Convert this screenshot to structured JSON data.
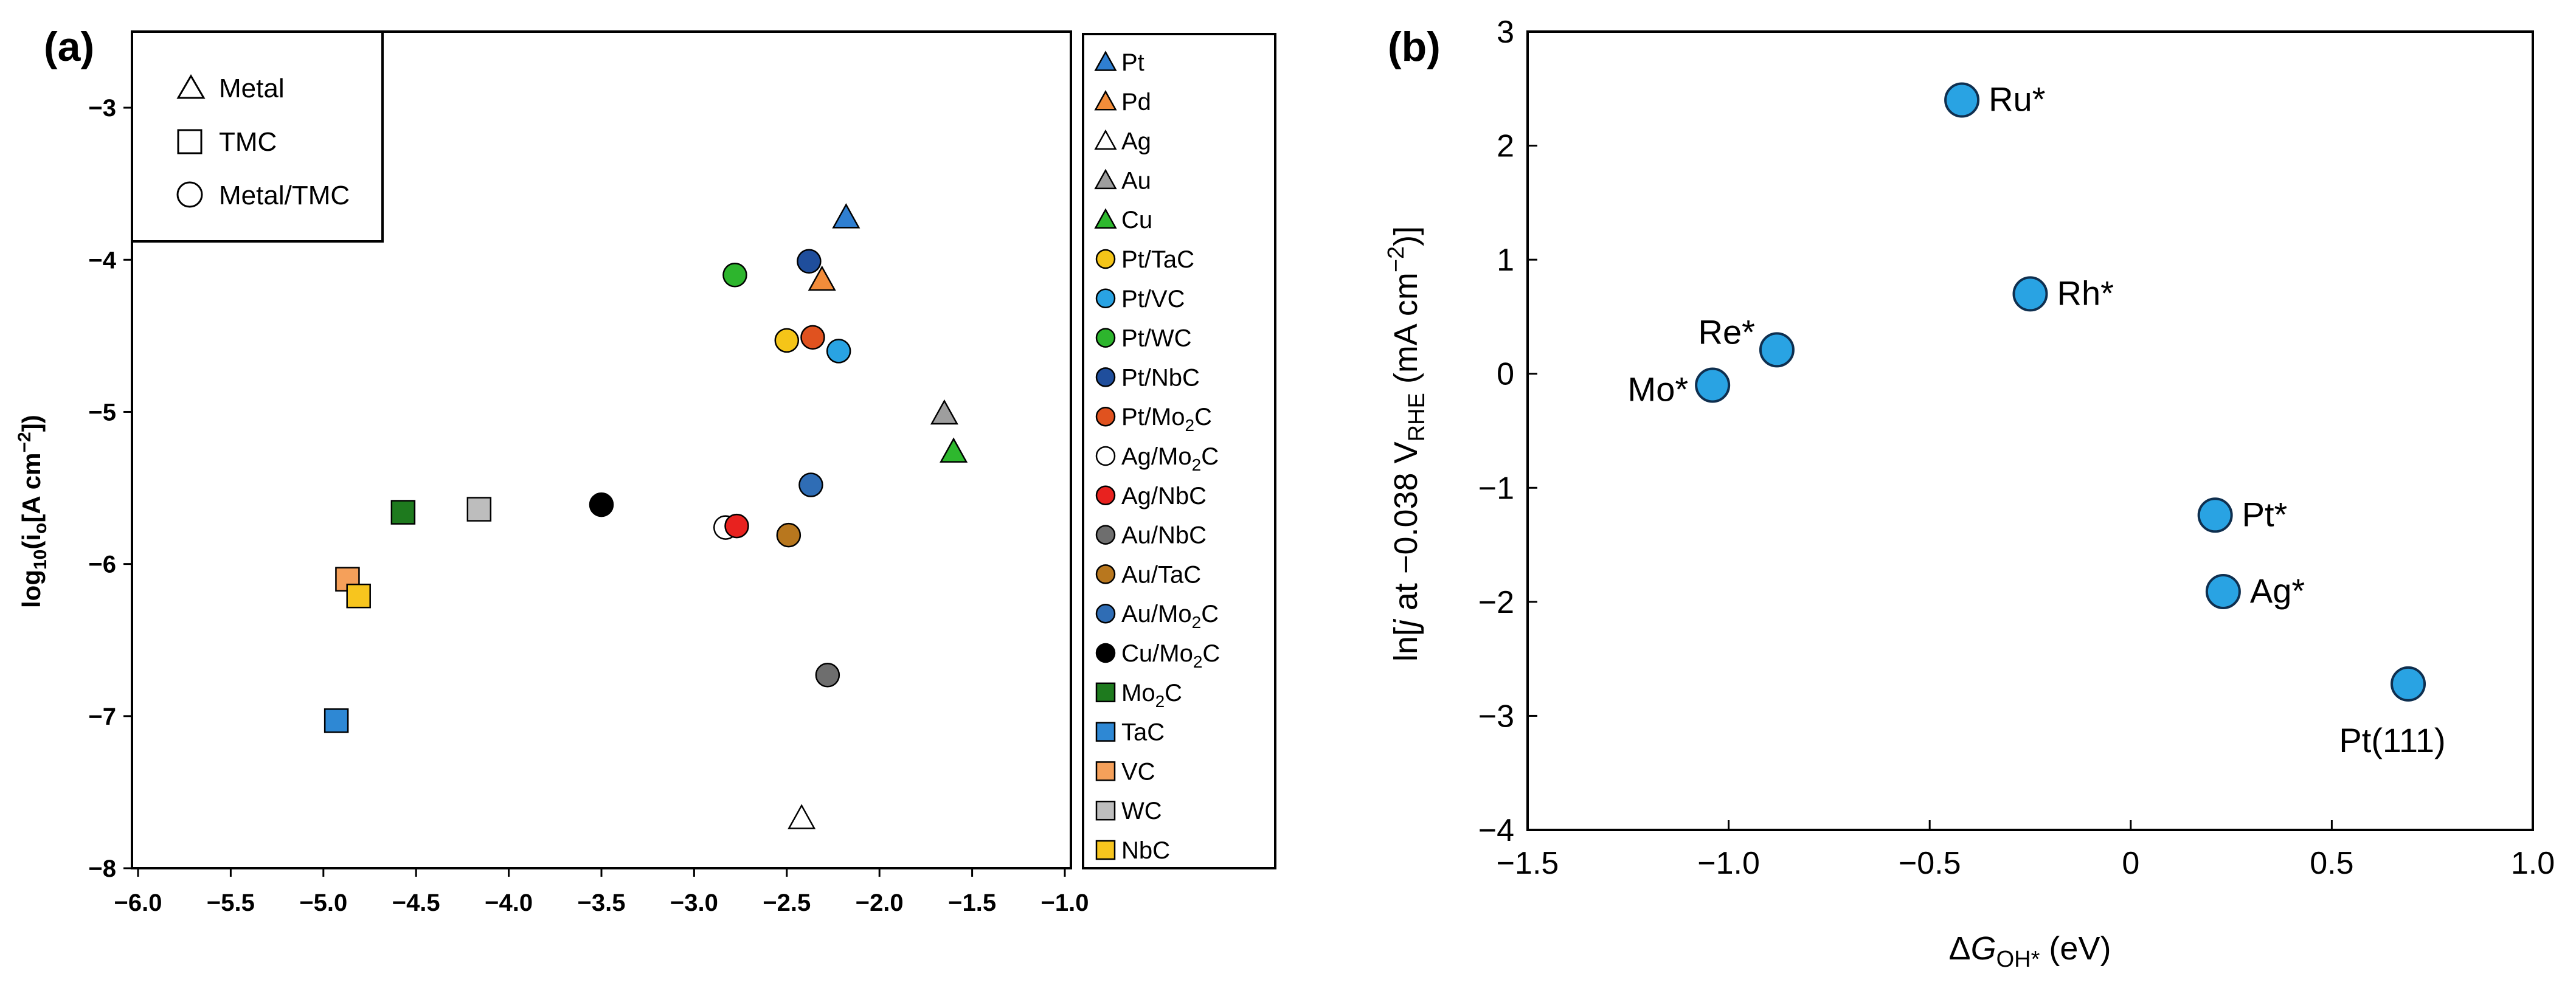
{
  "chart_data": [
    {
      "panel": "(a)",
      "type": "scatter",
      "title": "",
      "xlabel": "",
      "ylabel_main": "log",
      "ylabel_sub": "10",
      "ylabel_paren1": "(i",
      "ylabel_sub2": "o",
      "ylabel_rest": "[A cm",
      "ylabel_sup": "−2",
      "ylabel_end": "])",
      "xlim": [
        -6.0,
        -1.0
      ],
      "ylim": [
        -8,
        -2.5
      ],
      "xticks": [
        "−6.0",
        "−5.5",
        "−5.0",
        "−4.5",
        "−4.0",
        "−3.5",
        "−3.0",
        "−2.5",
        "−2.0",
        "−1.5",
        "−1.0"
      ],
      "yticks": [
        "−3",
        "−4",
        "−5",
        "−6",
        "−7",
        "−8"
      ],
      "shape_legend": [
        {
          "label": "Metal",
          "marker": "triangle"
        },
        {
          "label": "TMC",
          "marker": "square"
        },
        {
          "label": "Metal/TMC",
          "marker": "circle"
        }
      ],
      "series": [
        {
          "name": "Pt",
          "label_main": "Pt",
          "label_sub": "",
          "label_tail": "",
          "marker": "triangle",
          "color": "#2f7fd1",
          "points": [
            [
              -2.18,
              -3.72
            ]
          ]
        },
        {
          "name": "Pd",
          "label_main": "Pd",
          "label_sub": "",
          "label_tail": "",
          "marker": "triangle",
          "color": "#f28c3a",
          "points": [
            [
              -2.31,
              -4.13
            ]
          ]
        },
        {
          "name": "Ag",
          "label_main": "Ag",
          "label_sub": "",
          "label_tail": "",
          "marker": "triangle",
          "color": "#ffffff",
          "points": [
            [
              -2.42,
              -7.67
            ]
          ]
        },
        {
          "name": "Au",
          "label_main": "Au",
          "label_sub": "",
          "label_tail": "",
          "marker": "triangle",
          "color": "#9e9e9e",
          "points": [
            [
              -1.65,
              -5.01
            ]
          ]
        },
        {
          "name": "Cu",
          "label_main": "Cu",
          "label_sub": "",
          "label_tail": "",
          "marker": "triangle",
          "color": "#2eb82e",
          "points": [
            [
              -1.6,
              -5.26
            ]
          ]
        },
        {
          "name": "Pt/TaC",
          "label_main": "Pt/TaC",
          "label_sub": "",
          "label_tail": "",
          "marker": "circle",
          "color": "#f5c518",
          "points": [
            [
              -2.5,
              -4.53
            ]
          ]
        },
        {
          "name": "Pt/VC",
          "label_main": "Pt/VC",
          "label_sub": "",
          "label_tail": "",
          "marker": "circle",
          "color": "#29a3e3",
          "points": [
            [
              -2.22,
              -4.6
            ]
          ]
        },
        {
          "name": "Pt/WC",
          "label_main": "Pt/WC",
          "label_sub": "",
          "label_tail": "",
          "marker": "circle",
          "color": "#2db52d",
          "points": [
            [
              -2.78,
              -4.1
            ]
          ]
        },
        {
          "name": "Pt/NbC",
          "label_main": "Pt/NbC",
          "label_sub": "",
          "label_tail": "",
          "marker": "circle",
          "color": "#1f4e9c",
          "points": [
            [
              -2.38,
              -4.01
            ]
          ]
        },
        {
          "name": "Pt/Mo2C",
          "label_main": "Pt/Mo",
          "label_sub": "2",
          "label_tail": "C",
          "marker": "circle",
          "color": "#e0521f",
          "points": [
            [
              -2.36,
              -4.51
            ]
          ]
        },
        {
          "name": "Ag/Mo2C",
          "label_main": "Ag/Mo",
          "label_sub": "2",
          "label_tail": "C",
          "marker": "circle",
          "color": "#ffffff",
          "points": [
            [
              -2.83,
              -5.76
            ]
          ]
        },
        {
          "name": "Ag/NbC",
          "label_main": "Ag/NbC",
          "label_sub": "",
          "label_tail": "",
          "marker": "circle",
          "color": "#e8221f",
          "points": [
            [
              -2.77,
              -5.75
            ]
          ]
        },
        {
          "name": "Au/NbC",
          "label_main": "Au/NbC",
          "label_sub": "",
          "label_tail": "",
          "marker": "circle",
          "color": "#6e6e6e",
          "points": [
            [
              -2.28,
              -6.73
            ]
          ]
        },
        {
          "name": "Au/TaC",
          "label_main": "Au/TaC",
          "label_sub": "",
          "label_tail": "",
          "marker": "circle",
          "color": "#b8771e",
          "points": [
            [
              -2.49,
              -5.81
            ]
          ]
        },
        {
          "name": "Au/Mo2C",
          "label_main": "Au/Mo",
          "label_sub": "2",
          "label_tail": "C",
          "marker": "circle",
          "color": "#2f6db5",
          "points": [
            [
              -2.37,
              -5.48
            ]
          ]
        },
        {
          "name": "Cu/Mo2C",
          "label_main": "Cu/Mo",
          "label_sub": "2",
          "label_tail": "C",
          "marker": "circle",
          "color": "#000000",
          "points": [
            [
              -3.5,
              -5.61
            ]
          ]
        },
        {
          "name": "Mo2C",
          "label_main": "Mo",
          "label_sub": "2",
          "label_tail": "C",
          "marker": "square",
          "color": "#1e7a1e",
          "points": [
            [
              -4.57,
              -5.66
            ]
          ]
        },
        {
          "name": "TaC",
          "label_main": "TaC",
          "label_sub": "",
          "label_tail": "",
          "marker": "square",
          "color": "#2e88d4",
          "points": [
            [
              -4.93,
              -7.03
            ]
          ]
        },
        {
          "name": "VC",
          "label_main": "VC",
          "label_sub": "",
          "label_tail": "",
          "marker": "square",
          "color": "#f5a05a",
          "points": [
            [
              -4.87,
              -6.1
            ]
          ]
        },
        {
          "name": "WC",
          "label_main": "WC",
          "label_sub": "",
          "label_tail": "",
          "marker": "square",
          "color": "#bdbdbd",
          "points": [
            [
              -4.16,
              -5.64
            ]
          ]
        },
        {
          "name": "NbC",
          "label_main": "NbC",
          "label_sub": "",
          "label_tail": "",
          "marker": "square",
          "color": "#f7c51e",
          "points": [
            [
              -4.81,
              -6.21
            ]
          ]
        }
      ]
    },
    {
      "panel": "(b)",
      "type": "scatter",
      "title": "",
      "xlabel_delta": "Δ",
      "xlabel_g": "G",
      "xlabel_sub": "OH*",
      "xlabel_tail": " (eV)",
      "ylabel_a": "ln[",
      "ylabel_j": "j",
      "ylabel_b": " at −0.038 V",
      "ylabel_sub": "RHE",
      "ylabel_c": " (mA cm",
      "ylabel_sup": "−2",
      "ylabel_d": ")]",
      "xlim": [
        -1.5,
        1.0
      ],
      "ylim": [
        -4,
        3
      ],
      "xticks": [
        "−1.5",
        "−1.0",
        "−0.5",
        "0",
        "0.5",
        "1.0"
      ],
      "yticks": [
        "3",
        "2",
        "1",
        "0",
        "−1",
        "−2",
        "−3",
        "−4"
      ],
      "marker_color": "#29a3e3",
      "points": [
        {
          "label": "Ru*",
          "x": -0.42,
          "y": 2.4
        },
        {
          "label": "Rh*",
          "x": -0.25,
          "y": 0.7
        },
        {
          "label": "Re*",
          "x": -0.88,
          "y": 0.21
        },
        {
          "label": "Mo*",
          "x": -1.04,
          "y": -0.1
        },
        {
          "label": "Pt*",
          "x": 0.21,
          "y": -1.24
        },
        {
          "label": "Ag*",
          "x": 0.23,
          "y": -1.91
        },
        {
          "label": "Pt(111)",
          "x": 0.69,
          "y": -2.72
        }
      ]
    }
  ]
}
